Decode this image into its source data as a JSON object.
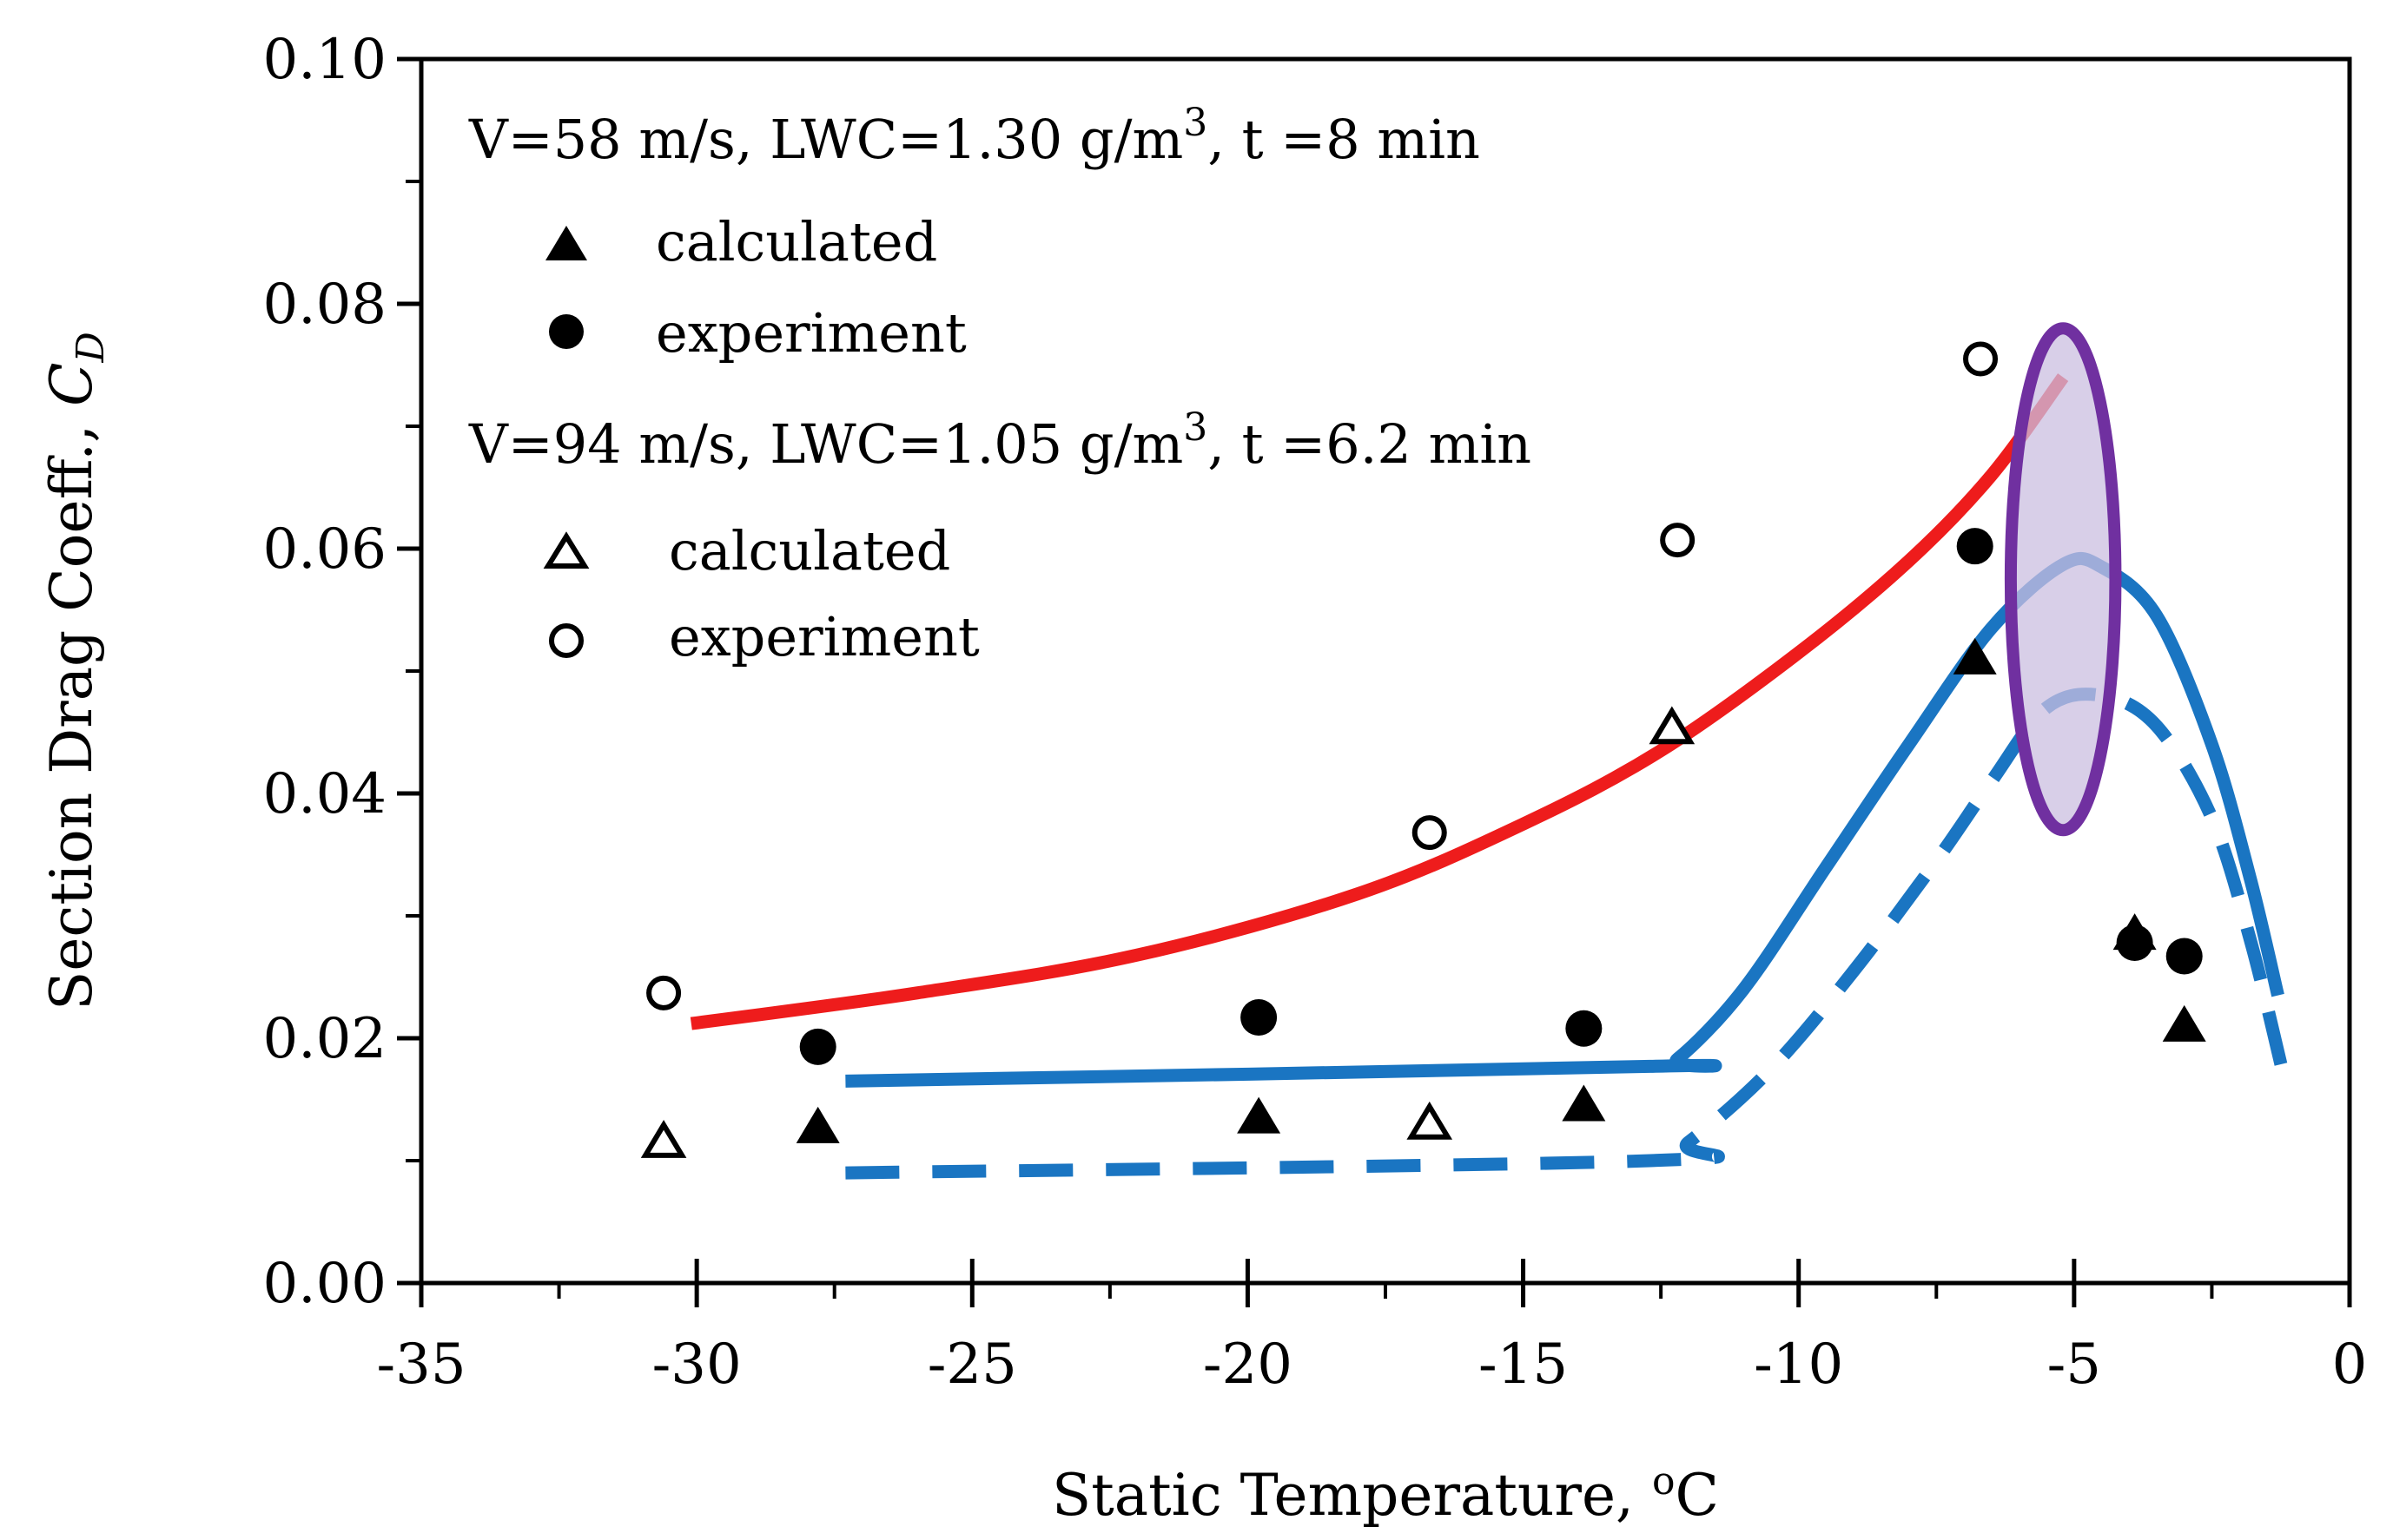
{
  "chart_data": {
    "type": "scatter",
    "title": "",
    "xlabel": "Static Temperature, ",
    "xlabel_unit_sup": "o",
    "xlabel_unit": "C",
    "ylabel": "Section Drag Coeff., ",
    "ylabel_symbol": "C",
    "ylabel_subscript": "D",
    "xlim": [
      -35,
      0
    ],
    "ylim": [
      0.0,
      0.1
    ],
    "x_ticks": [
      -35,
      -30,
      -25,
      -20,
      -15,
      -10,
      -5,
      0
    ],
    "x_tick_labels": [
      "-35",
      "-30",
      "-25",
      "-20",
      "-15",
      "-10",
      "-5",
      "0"
    ],
    "y_ticks": [
      0.0,
      0.02,
      0.04,
      0.06,
      0.08,
      0.1
    ],
    "y_tick_labels": [
      "0.00",
      "0.02",
      "0.04",
      "0.06",
      "0.08",
      "0.10"
    ],
    "grid": false,
    "legend": {
      "groups": [
        {
          "heading_main": "V=58 m/s, LWC=1.30 g/m",
          "heading_sup": "3",
          "heading_tail": ", t =8 min",
          "entries": [
            {
              "marker": "filled-triangle",
              "label": "calculated"
            },
            {
              "marker": "filled-circle",
              "label": "experiment"
            }
          ]
        },
        {
          "heading_main": "V=94 m/s, LWC=1.05 g/m",
          "heading_sup": "3",
          "heading_tail": ", t =6.2 min",
          "entries": [
            {
              "marker": "open-triangle",
              "label": "calculated"
            },
            {
              "marker": "open-circle",
              "label": "experiment"
            }
          ]
        }
      ],
      "placement": "top-left"
    },
    "series": [
      {
        "name": "V=58 calculated",
        "marker": "filled-triangle",
        "x": [
          -27.8,
          -19.8,
          -13.9,
          -6.8,
          -3.9,
          -3.0
        ],
        "y": [
          0.0127,
          0.0135,
          0.0145,
          0.051,
          0.0285,
          0.021
        ]
      },
      {
        "name": "V=58 experiment",
        "marker": "filled-circle",
        "x": [
          -27.8,
          -19.8,
          -13.9,
          -6.8,
          -3.9,
          -3.0
        ],
        "y": [
          0.0193,
          0.0217,
          0.0208,
          0.0602,
          0.0278,
          0.0267
        ]
      },
      {
        "name": "V=94 calculated",
        "marker": "open-triangle",
        "x": [
          -30.6,
          -16.7,
          -12.3
        ],
        "y": [
          0.0115,
          0.013,
          0.0453
        ]
      },
      {
        "name": "V=94 experiment",
        "marker": "open-circle",
        "x": [
          -30.6,
          -16.7,
          -12.2,
          -6.7
        ],
        "y": [
          0.0237,
          0.0368,
          0.0607,
          0.0755
        ]
      }
    ],
    "curves": [
      {
        "name": "red-trend",
        "color": "#ee1c1c",
        "style": "solid",
        "x": [
          -30.1,
          -26.0,
          -22.0,
          -18.0,
          -15.0,
          -12.5,
          -10.0,
          -8.0,
          -6.5,
          -5.2
        ],
        "y": [
          0.0212,
          0.0237,
          0.0268,
          0.0318,
          0.0375,
          0.0435,
          0.0515,
          0.059,
          0.066,
          0.074
        ]
      },
      {
        "name": "blue-solid",
        "color": "#1a75c2",
        "style": "solid",
        "x": [
          -27.3,
          -12.7,
          -12.2,
          -11.0,
          -9.5,
          -8.0,
          -6.5,
          -5.2,
          -4.5,
          -3.5,
          -2.5,
          -1.8,
          -1.3
        ],
        "y": [
          0.0165,
          0.0177,
          0.0183,
          0.024,
          0.034,
          0.044,
          0.0535,
          0.0587,
          0.0585,
          0.0545,
          0.044,
          0.033,
          0.0235
        ]
      },
      {
        "name": "blue-dashed",
        "color": "#1a75c2",
        "style": "dashed",
        "x": [
          -27.3,
          -12.7,
          -12.0,
          -10.5,
          -9.0,
          -7.5,
          -6.5,
          -5.5,
          -4.5,
          -3.5,
          -2.5,
          -1.8,
          -1.2
        ],
        "y": [
          0.009,
          0.01,
          0.0115,
          0.0175,
          0.0255,
          0.0345,
          0.041,
          0.047,
          0.048,
          0.0455,
          0.038,
          0.028,
          0.017
        ]
      }
    ],
    "highlight": {
      "shape": "ellipse",
      "center_x": -5.2,
      "center_y": 0.0575,
      "half_width": 0.95,
      "half_height": 0.0205,
      "stroke": "#7030a0",
      "fill": "#cbbfe0"
    }
  },
  "colors": {
    "axis": "#000000",
    "red_curve": "#ee1c1c",
    "blue_curve": "#1a75c2",
    "highlight_stroke": "#7030a0",
    "highlight_fill": "#cbbfe0"
  }
}
